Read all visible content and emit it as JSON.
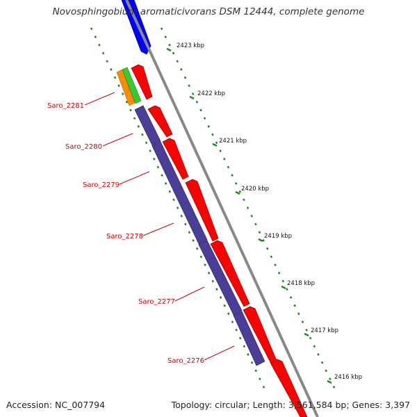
{
  "title": "Novosphingobium aromaticivorans DSM 12444, complete genome",
  "footer": {
    "accession": "Accession: NC_007794",
    "summary": "Topology: circular; Length: 3,561,584 bp; Genes: 3,397"
  },
  "colors": {
    "background": "#ffffff",
    "backbone": "#888888",
    "forward_cds": "#ff0000",
    "reverse_cds": "#4b3e98",
    "blue_feature": "#0000ff",
    "orange_feature": "#ff8c00",
    "green_feature": "#33cc33",
    "tick": "#228822",
    "label": "#cc0000"
  },
  "ticks": [
    "2423 kbp",
    "2422 kbp",
    "2421 kbp",
    "2420 kbp",
    "2419 kbp",
    "2418 kbp",
    "2417 kbp",
    "2416 kbp"
  ],
  "genes": [
    "Saro_2281",
    "Saro_2280",
    "Saro_2279",
    "Saro_2278",
    "Saro_2277",
    "Saro_2276"
  ]
}
